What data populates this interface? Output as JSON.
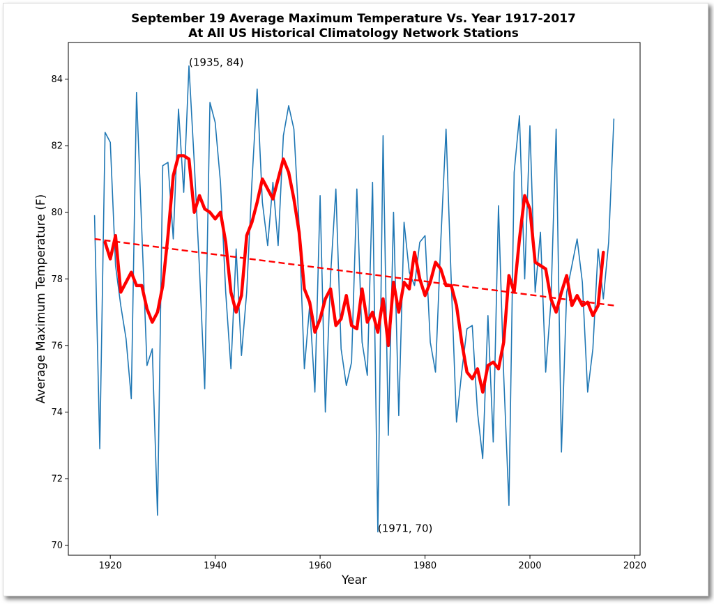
{
  "chart_data": {
    "type": "line",
    "title_line1": "September 19 Average Maximum Temperature Vs. Year 1917-2017",
    "title_line2": "At All US Historical Climatology Network Stations",
    "xlabel": "Year",
    "ylabel": "Average Maximum Temperature (F)",
    "xlim": [
      1912,
      2021
    ],
    "ylim": [
      69.7,
      85.1
    ],
    "grid": false,
    "x_ticks": [
      1920,
      1940,
      1960,
      1980,
      2000,
      2020
    ],
    "y_ticks": [
      70,
      72,
      74,
      76,
      78,
      80,
      82,
      84
    ],
    "annotations": [
      {
        "text": "(1935, 84)",
        "x": 1935,
        "y": 84.4
      },
      {
        "text": "(1971, 70)",
        "x": 1971,
        "y": 70.4
      }
    ],
    "series": [
      {
        "color": "#1f77b4",
        "style": "thin",
        "x": [
          1917,
          1918,
          1919,
          1920,
          1921,
          1922,
          1923,
          1924,
          1925,
          1926,
          1927,
          1928,
          1929,
          1930,
          1931,
          1932,
          1933,
          1934,
          1935,
          1936,
          1937,
          1938,
          1939,
          1940,
          1941,
          1942,
          1943,
          1944,
          1945,
          1946,
          1947,
          1948,
          1949,
          1950,
          1951,
          1952,
          1953,
          1954,
          1955,
          1956,
          1957,
          1958,
          1959,
          1960,
          1961,
          1962,
          1963,
          1964,
          1965,
          1966,
          1967,
          1968,
          1969,
          1970,
          1971,
          1972,
          1973,
          1974,
          1975,
          1976,
          1977,
          1978,
          1979,
          1980,
          1981,
          1982,
          1983,
          1984,
          1985,
          1986,
          1987,
          1988,
          1989,
          1990,
          1991,
          1992,
          1993,
          1994,
          1995,
          1996,
          1997,
          1998,
          1999,
          2000,
          2001,
          2002,
          2003,
          2004,
          2005,
          2006,
          2007,
          2008,
          2009,
          2010,
          2011,
          2012,
          2013,
          2014,
          2015,
          2016
        ],
        "y": [
          79.9,
          72.9,
          82.4,
          82.1,
          78.4,
          77.2,
          76.2,
          74.4,
          83.6,
          79.5,
          75.4,
          75.9,
          70.9,
          81.4,
          81.5,
          79.2,
          83.1,
          80.6,
          84.4,
          81.5,
          78.3,
          74.7,
          83.3,
          82.7,
          80.9,
          77.6,
          75.3,
          78.9,
          75.7,
          77.6,
          80.9,
          83.7,
          80.3,
          79.0,
          80.9,
          79.0,
          82.3,
          83.2,
          82.5,
          79.6,
          75.3,
          77.2,
          74.6,
          80.5,
          74.0,
          78.1,
          80.7,
          75.9,
          74.8,
          75.5,
          80.7,
          76.1,
          75.1,
          80.9,
          70.4,
          82.3,
          73.3,
          80.0,
          73.9,
          79.7,
          78.2,
          77.8,
          79.1,
          79.3,
          76.1,
          75.2,
          79.1,
          82.5,
          77.9,
          73.7,
          75.2,
          76.5,
          76.6,
          74.0,
          72.6,
          76.9,
          73.1,
          80.2,
          75.1,
          71.2,
          81.2,
          82.9,
          78.0,
          82.6,
          77.6,
          79.4,
          75.2,
          77.3,
          82.5,
          72.8,
          77.6,
          78.4,
          79.2,
          77.9,
          74.6,
          75.9,
          78.9,
          77.4,
          79.1,
          82.8
        ]
      },
      {
        "color": "#ff0000",
        "style": "thick-smoothed",
        "x": [
          1919,
          1920,
          1921,
          1922,
          1923,
          1924,
          1925,
          1926,
          1927,
          1928,
          1929,
          1930,
          1931,
          1932,
          1933,
          1934,
          1935,
          1936,
          1937,
          1938,
          1939,
          1940,
          1941,
          1942,
          1943,
          1944,
          1945,
          1946,
          1947,
          1948,
          1949,
          1950,
          1951,
          1952,
          1953,
          1954,
          1955,
          1956,
          1957,
          1958,
          1959,
          1960,
          1961,
          1962,
          1963,
          1964,
          1965,
          1966,
          1967,
          1968,
          1969,
          1970,
          1971,
          1972,
          1973,
          1974,
          1975,
          1976,
          1977,
          1978,
          1979,
          1980,
          1981,
          1982,
          1983,
          1984,
          1985,
          1986,
          1987,
          1988,
          1989,
          1990,
          1991,
          1992,
          1993,
          1994,
          1995,
          1996,
          1997,
          1998,
          1999,
          2000,
          2001,
          2002,
          2003,
          2004,
          2005,
          2006,
          2007,
          2008,
          2009,
          2010,
          2011,
          2012,
          2013,
          2014
        ],
        "y": [
          79.1,
          78.6,
          79.3,
          77.6,
          77.9,
          78.2,
          77.8,
          77.8,
          77.1,
          76.7,
          77.0,
          77.8,
          79.3,
          81.1,
          81.7,
          81.7,
          81.6,
          80.0,
          80.5,
          80.1,
          80.0,
          79.8,
          80.0,
          79.1,
          77.6,
          77.0,
          77.5,
          79.3,
          79.7,
          80.3,
          81.0,
          80.7,
          80.4,
          81.0,
          81.6,
          81.2,
          80.4,
          79.4,
          77.7,
          77.3,
          76.4,
          76.8,
          77.4,
          77.7,
          76.6,
          76.8,
          77.5,
          76.6,
          76.5,
          77.7,
          76.7,
          77.0,
          76.4,
          77.4,
          76.0,
          77.9,
          77.0,
          77.9,
          77.7,
          78.8,
          78.0,
          77.5,
          77.9,
          78.5,
          78.3,
          77.8,
          77.8,
          77.2,
          76.1,
          75.2,
          75.0,
          75.3,
          74.6,
          75.4,
          75.5,
          75.3,
          76.1,
          78.1,
          77.6,
          79.2,
          80.5,
          80.1,
          78.5,
          78.4,
          78.3,
          77.4,
          77.0,
          77.6,
          78.1,
          77.2,
          77.5,
          77.2,
          77.3,
          76.9,
          77.2,
          78.8
        ]
      },
      {
        "color": "#ff0000",
        "style": "dashed-trend",
        "x": [
          1917,
          2016
        ],
        "y": [
          79.2,
          77.2
        ]
      }
    ]
  }
}
